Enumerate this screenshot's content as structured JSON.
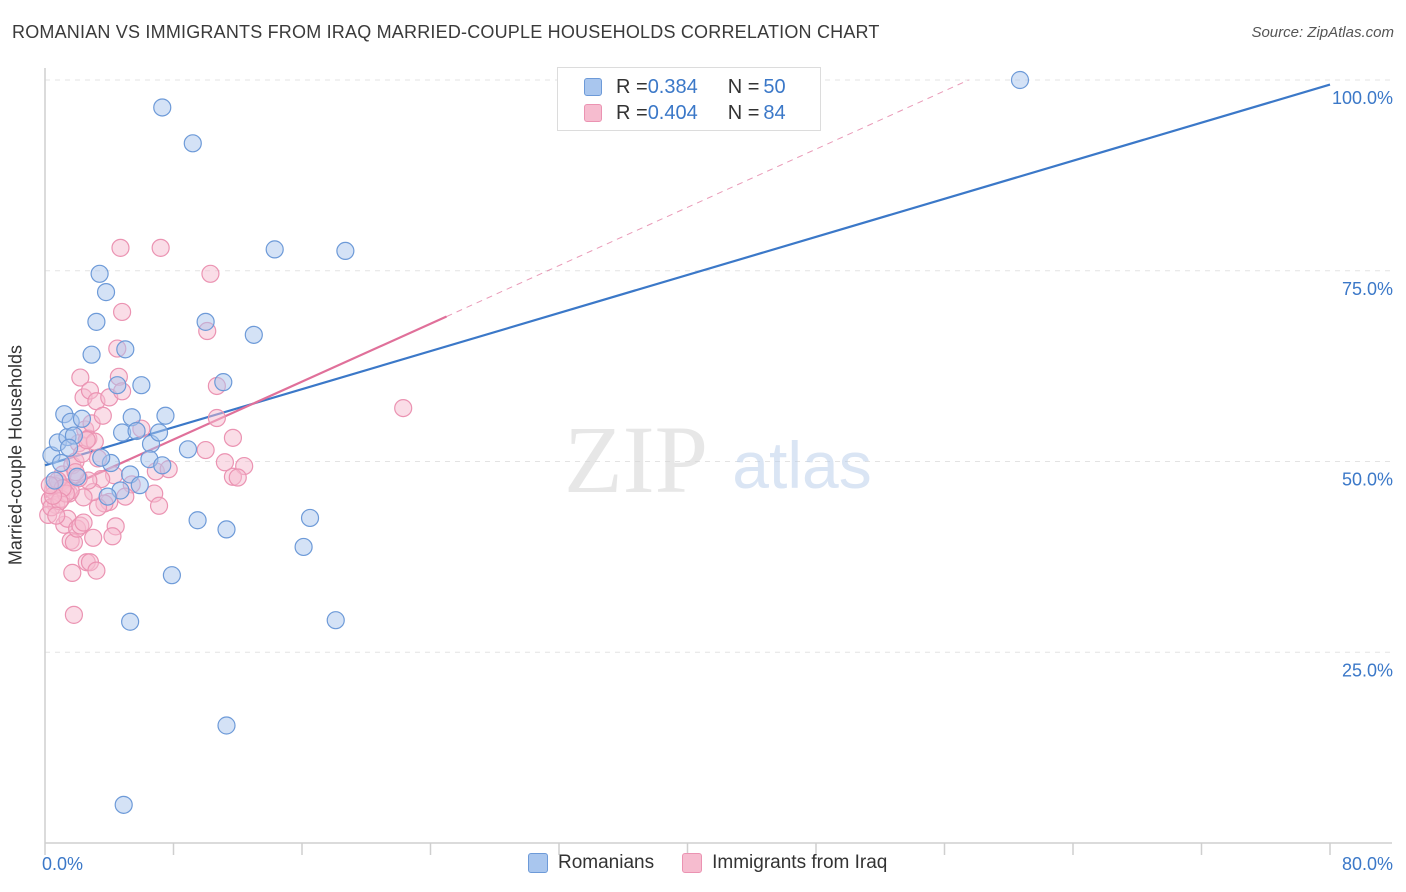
{
  "title": "ROMANIAN VS IMMIGRANTS FROM IRAQ MARRIED-COUPLE HOUSEHOLDS CORRELATION CHART",
  "source": "Source: ZipAtlas.com",
  "watermark": {
    "zip": "ZIP",
    "atlas": "atlas"
  },
  "colors": {
    "blue": "#3b78c8",
    "blue_fill": "#a9c6ee",
    "blue_stroke": "#6d9ad8",
    "pink": "#e0709a",
    "pink_fill": "#f6bccf",
    "pink_stroke": "#eb93b2",
    "grid": "#e3e3e3"
  },
  "legend": {
    "rows": [
      {
        "r_label": "R = ",
        "r_value": "0.384",
        "n_label": "N = ",
        "n_value": "50"
      },
      {
        "r_label": "R = ",
        "r_value": "0.404",
        "n_label": "N = ",
        "n_value": "84"
      }
    ]
  },
  "bottom_legend": [
    "Romanians",
    "Immigrants from Iraq"
  ],
  "chart_data": {
    "type": "scatter",
    "xlabel": "",
    "ylabel": "Married-couple Households",
    "xlim": [
      0,
      80
    ],
    "ylim": [
      0,
      100
    ],
    "x_tick_labels": [
      {
        "x": 0,
        "label": "0.0%"
      },
      {
        "x": 80,
        "label": "80.0%"
      }
    ],
    "y_tick_labels": [
      {
        "y": 100,
        "label": "100.0%"
      },
      {
        "y": 75,
        "label": "75.0%"
      },
      {
        "y": 50,
        "label": "50.0%"
      },
      {
        "y": 25,
        "label": "25.0%"
      }
    ],
    "x_ticks": [
      0,
      8,
      16,
      24,
      32,
      40,
      48,
      56,
      64,
      72,
      80
    ],
    "y_gridlines": [
      100,
      75,
      50,
      25
    ],
    "series": [
      {
        "name": "Romanians",
        "R": 0.384,
        "N": 50,
        "trend": {
          "x0": 0,
          "y0": 49.5,
          "x1": 80,
          "y1": 99.4
        },
        "points": [
          [
            0.4,
            50.8
          ],
          [
            0.8,
            52.5
          ],
          [
            1.2,
            56.2
          ],
          [
            1.4,
            53.2
          ],
          [
            1.6,
            55.2
          ],
          [
            1.8,
            53.4
          ],
          [
            2.3,
            55.6
          ],
          [
            2.0,
            48.0
          ],
          [
            0.6,
            47.5
          ],
          [
            1.0,
            49.8
          ],
          [
            1.5,
            51.8
          ],
          [
            2.9,
            64.0
          ],
          [
            3.4,
            74.6
          ],
          [
            3.8,
            72.2
          ],
          [
            3.2,
            68.3
          ],
          [
            5.0,
            64.7
          ],
          [
            4.5,
            60.0
          ],
          [
            6.0,
            60.0
          ],
          [
            7.3,
            96.4
          ],
          [
            9.2,
            91.7
          ],
          [
            10.0,
            68.3
          ],
          [
            11.1,
            60.4
          ],
          [
            4.8,
            53.8
          ],
          [
            5.4,
            55.8
          ],
          [
            5.7,
            54.0
          ],
          [
            6.6,
            52.3
          ],
          [
            7.1,
            53.8
          ],
          [
            7.5,
            56.0
          ],
          [
            8.9,
            51.6
          ],
          [
            6.5,
            50.3
          ],
          [
            5.3,
            48.3
          ],
          [
            7.3,
            49.5
          ],
          [
            4.1,
            49.8
          ],
          [
            4.7,
            46.2
          ],
          [
            3.9,
            45.4
          ],
          [
            5.9,
            46.9
          ],
          [
            9.5,
            42.3
          ],
          [
            16.5,
            42.6
          ],
          [
            11.3,
            41.1
          ],
          [
            14.3,
            77.8
          ],
          [
            18.7,
            77.6
          ],
          [
            13.0,
            66.6
          ],
          [
            16.1,
            38.8
          ],
          [
            7.9,
            35.1
          ],
          [
            5.3,
            29.0
          ],
          [
            18.1,
            29.2
          ],
          [
            11.3,
            15.4
          ],
          [
            4.9,
            5.0
          ],
          [
            60.7,
            100.0
          ],
          [
            3.5,
            50.5
          ]
        ]
      },
      {
        "name": "Immigrants from Iraq",
        "R": 0.404,
        "N": 84,
        "trend": {
          "x0": 0,
          "y0": 45.3,
          "x1": 25,
          "y1": 69.0
        },
        "trend_dashed": {
          "x0": 25,
          "y0": 69.0,
          "x1": 57.5,
          "y1": 100.0
        },
        "points": [
          [
            0.3,
            45.0
          ],
          [
            0.5,
            46.2
          ],
          [
            0.7,
            44.3
          ],
          [
            0.9,
            47.1
          ],
          [
            1.1,
            48.3
          ],
          [
            1.3,
            46.6
          ],
          [
            1.5,
            45.8
          ],
          [
            1.7,
            49.5
          ],
          [
            1.9,
            50.0
          ],
          [
            2.1,
            52.4
          ],
          [
            2.3,
            51.0
          ],
          [
            2.5,
            54.2
          ],
          [
            2.7,
            53.0
          ],
          [
            2.9,
            55.0
          ],
          [
            3.1,
            52.6
          ],
          [
            3.3,
            50.4
          ],
          [
            0.2,
            43.0
          ],
          [
            0.4,
            44.0
          ],
          [
            0.6,
            46.8
          ],
          [
            0.8,
            47.5
          ],
          [
            1.0,
            45.1
          ],
          [
            1.2,
            41.7
          ],
          [
            1.4,
            42.5
          ],
          [
            1.6,
            39.6
          ],
          [
            1.8,
            39.4
          ],
          [
            2.0,
            41.2
          ],
          [
            2.2,
            41.6
          ],
          [
            2.4,
            42.0
          ],
          [
            2.6,
            36.8
          ],
          [
            2.8,
            36.8
          ],
          [
            3.0,
            40.0
          ],
          [
            3.2,
            35.7
          ],
          [
            1.7,
            35.4
          ],
          [
            1.8,
            29.9
          ],
          [
            2.2,
            61.0
          ],
          [
            2.4,
            58.4
          ],
          [
            2.8,
            59.3
          ],
          [
            3.2,
            57.9
          ],
          [
            3.6,
            56.0
          ],
          [
            4.0,
            58.4
          ],
          [
            4.6,
            61.1
          ],
          [
            4.8,
            59.2
          ],
          [
            4.5,
            64.8
          ],
          [
            4.8,
            69.6
          ],
          [
            4.7,
            78.0
          ],
          [
            7.2,
            78.0
          ],
          [
            10.3,
            74.6
          ],
          [
            10.1,
            67.1
          ],
          [
            10.7,
            59.9
          ],
          [
            10.7,
            55.7
          ],
          [
            11.7,
            53.1
          ],
          [
            12.4,
            49.4
          ],
          [
            11.7,
            48.0
          ],
          [
            11.2,
            49.9
          ],
          [
            10.0,
            51.5
          ],
          [
            6.9,
            48.7
          ],
          [
            6.8,
            45.8
          ],
          [
            7.1,
            44.2
          ],
          [
            5.4,
            47.0
          ],
          [
            5.0,
            45.4
          ],
          [
            4.3,
            48.2
          ],
          [
            4.0,
            44.7
          ],
          [
            3.7,
            44.5
          ],
          [
            3.5,
            47.7
          ],
          [
            3.3,
            44.0
          ],
          [
            3.0,
            46.0
          ],
          [
            2.7,
            47.5
          ],
          [
            2.4,
            45.3
          ],
          [
            2.1,
            47.8
          ],
          [
            1.9,
            48.6
          ],
          [
            1.6,
            46.2
          ],
          [
            1.3,
            45.8
          ],
          [
            1.1,
            46.5
          ],
          [
            0.9,
            44.8
          ],
          [
            0.7,
            42.9
          ],
          [
            0.5,
            45.5
          ],
          [
            0.3,
            46.9
          ],
          [
            4.4,
            41.5
          ],
          [
            4.2,
            40.2
          ],
          [
            2.6,
            52.8
          ],
          [
            6.0,
            54.3
          ],
          [
            7.7,
            49.0
          ],
          [
            22.3,
            57.0
          ],
          [
            12.0,
            47.9
          ]
        ]
      }
    ]
  }
}
